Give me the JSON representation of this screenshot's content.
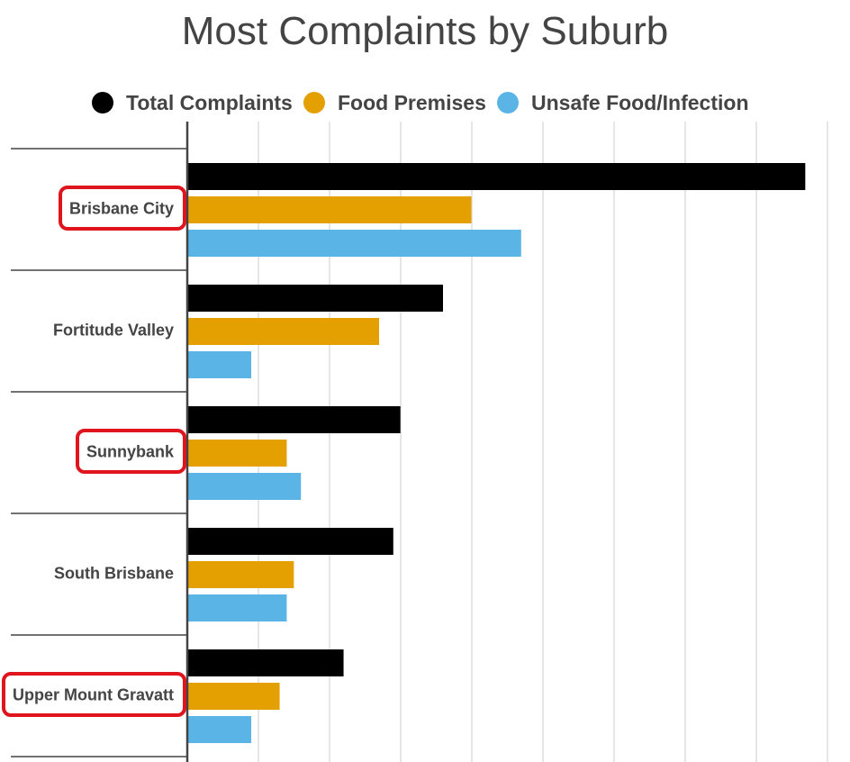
{
  "chart_data": {
    "type": "bar",
    "orientation": "horizontal",
    "title": "Most Complaints by Suburb",
    "categories": [
      "Brisbane City",
      "Fortitude Valley",
      "Sunnybank",
      "South Brisbane",
      "Upper Mount Gravatt"
    ],
    "highlighted": [
      "Brisbane City",
      "Sunnybank",
      "Upper Mount Gravatt"
    ],
    "series": [
      {
        "name": "Total Complaints",
        "color": "#000000",
        "values": [
          87,
          36,
          30,
          29,
          22
        ]
      },
      {
        "name": "Food Premises",
        "color": "#e3a000",
        "values": [
          40,
          27,
          14,
          15,
          13
        ]
      },
      {
        "name": "Unsafe Food/Infection",
        "color": "#5ab4e5",
        "values": [
          47,
          9,
          16,
          14,
          9
        ]
      }
    ],
    "xlim": [
      0,
      90
    ],
    "x_gridlines": 10,
    "legend_position": "top",
    "grid": true
  }
}
